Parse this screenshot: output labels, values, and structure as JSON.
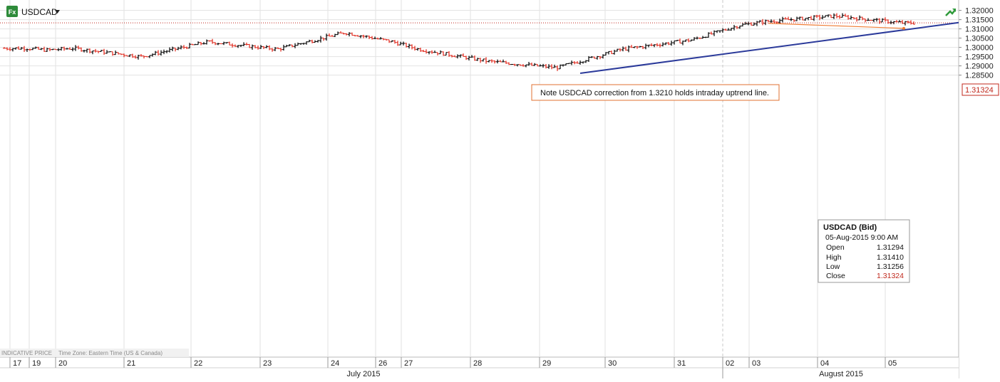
{
  "header": {
    "instrument": "USDCAD",
    "fx_badge": "Fx",
    "dropdown_icon": "caret-down-icon",
    "trend_icon": "trend-arrow-icon"
  },
  "footer_note": {
    "indicative": "INDICATIVE PRICE",
    "timezone": "Time Zone: Eastern Time (US & Canada)"
  },
  "annotation": {
    "text": "Note USDCAD correction from 1.3210 holds intraday uptrend line."
  },
  "last_price": "1.31324",
  "tooltip": {
    "title": "USDCAD (Bid)",
    "datetime": "05-Aug-2015 9:00 AM",
    "rows": [
      {
        "label": "Open",
        "value": "1.31294"
      },
      {
        "label": "High",
        "value": "1.31410"
      },
      {
        "label": "Low",
        "value": "1.31256"
      },
      {
        "label": "Close",
        "value": "1.31324"
      }
    ]
  },
  "colors": {
    "up": "#000000",
    "down": "#e0281c",
    "trendline": "#2b3a9a",
    "annotation_line": "#f07a30",
    "last_price_line": "#c0281c",
    "grid": "#e2e2e2",
    "axis_bg": "#f2f2f2"
  },
  "chart_data": {
    "type": "ohlc",
    "instrument": "USDCAD",
    "interval": "hourly",
    "y_axis": {
      "min": 1.285,
      "max": 1.321,
      "ticks": [
        "1.28500",
        "1.29000",
        "1.29500",
        "1.30000",
        "1.30500",
        "1.31000",
        "1.31500",
        "1.32000"
      ]
    },
    "x_axis": {
      "days": [
        "17",
        "19",
        "20",
        "21",
        "22",
        "23",
        "24",
        "26",
        "27",
        "28",
        "29",
        "30",
        "31",
        "02",
        "03",
        "04",
        "05"
      ],
      "months": [
        "July 2015",
        "August 2015"
      ]
    },
    "price_anchors": [
      {
        "day": "17",
        "price": 1.2995
      },
      {
        "day": "19",
        "price": 1.2985
      },
      {
        "day": "20",
        "price": 1.2995
      },
      {
        "day": "21",
        "price": 1.295
      },
      {
        "day": "22",
        "price": 1.303
      },
      {
        "day": "23",
        "price": 1.299
      },
      {
        "day": "24",
        "price": 1.308
      },
      {
        "day": "26",
        "price": 1.303
      },
      {
        "day": "27",
        "price": 1.299
      },
      {
        "day": "28",
        "price": 1.2925
      },
      {
        "day": "29",
        "price": 1.289
      },
      {
        "day": "30",
        "price": 1.299
      },
      {
        "day": "31",
        "price": 1.304
      },
      {
        "day": "02",
        "price": 1.312
      },
      {
        "day": "03",
        "price": 1.314
      },
      {
        "day": "04",
        "price": 1.317
      },
      {
        "day": "05",
        "price": 1.3132
      }
    ],
    "trendline": {
      "start": {
        "day": "29",
        "price": 1.286
      },
      "end": {
        "day": "05",
        "price": 1.3134
      }
    },
    "annotation_line": {
      "start_price": 1.313,
      "end_price": 1.3103
    },
    "last_price": 1.31324
  }
}
